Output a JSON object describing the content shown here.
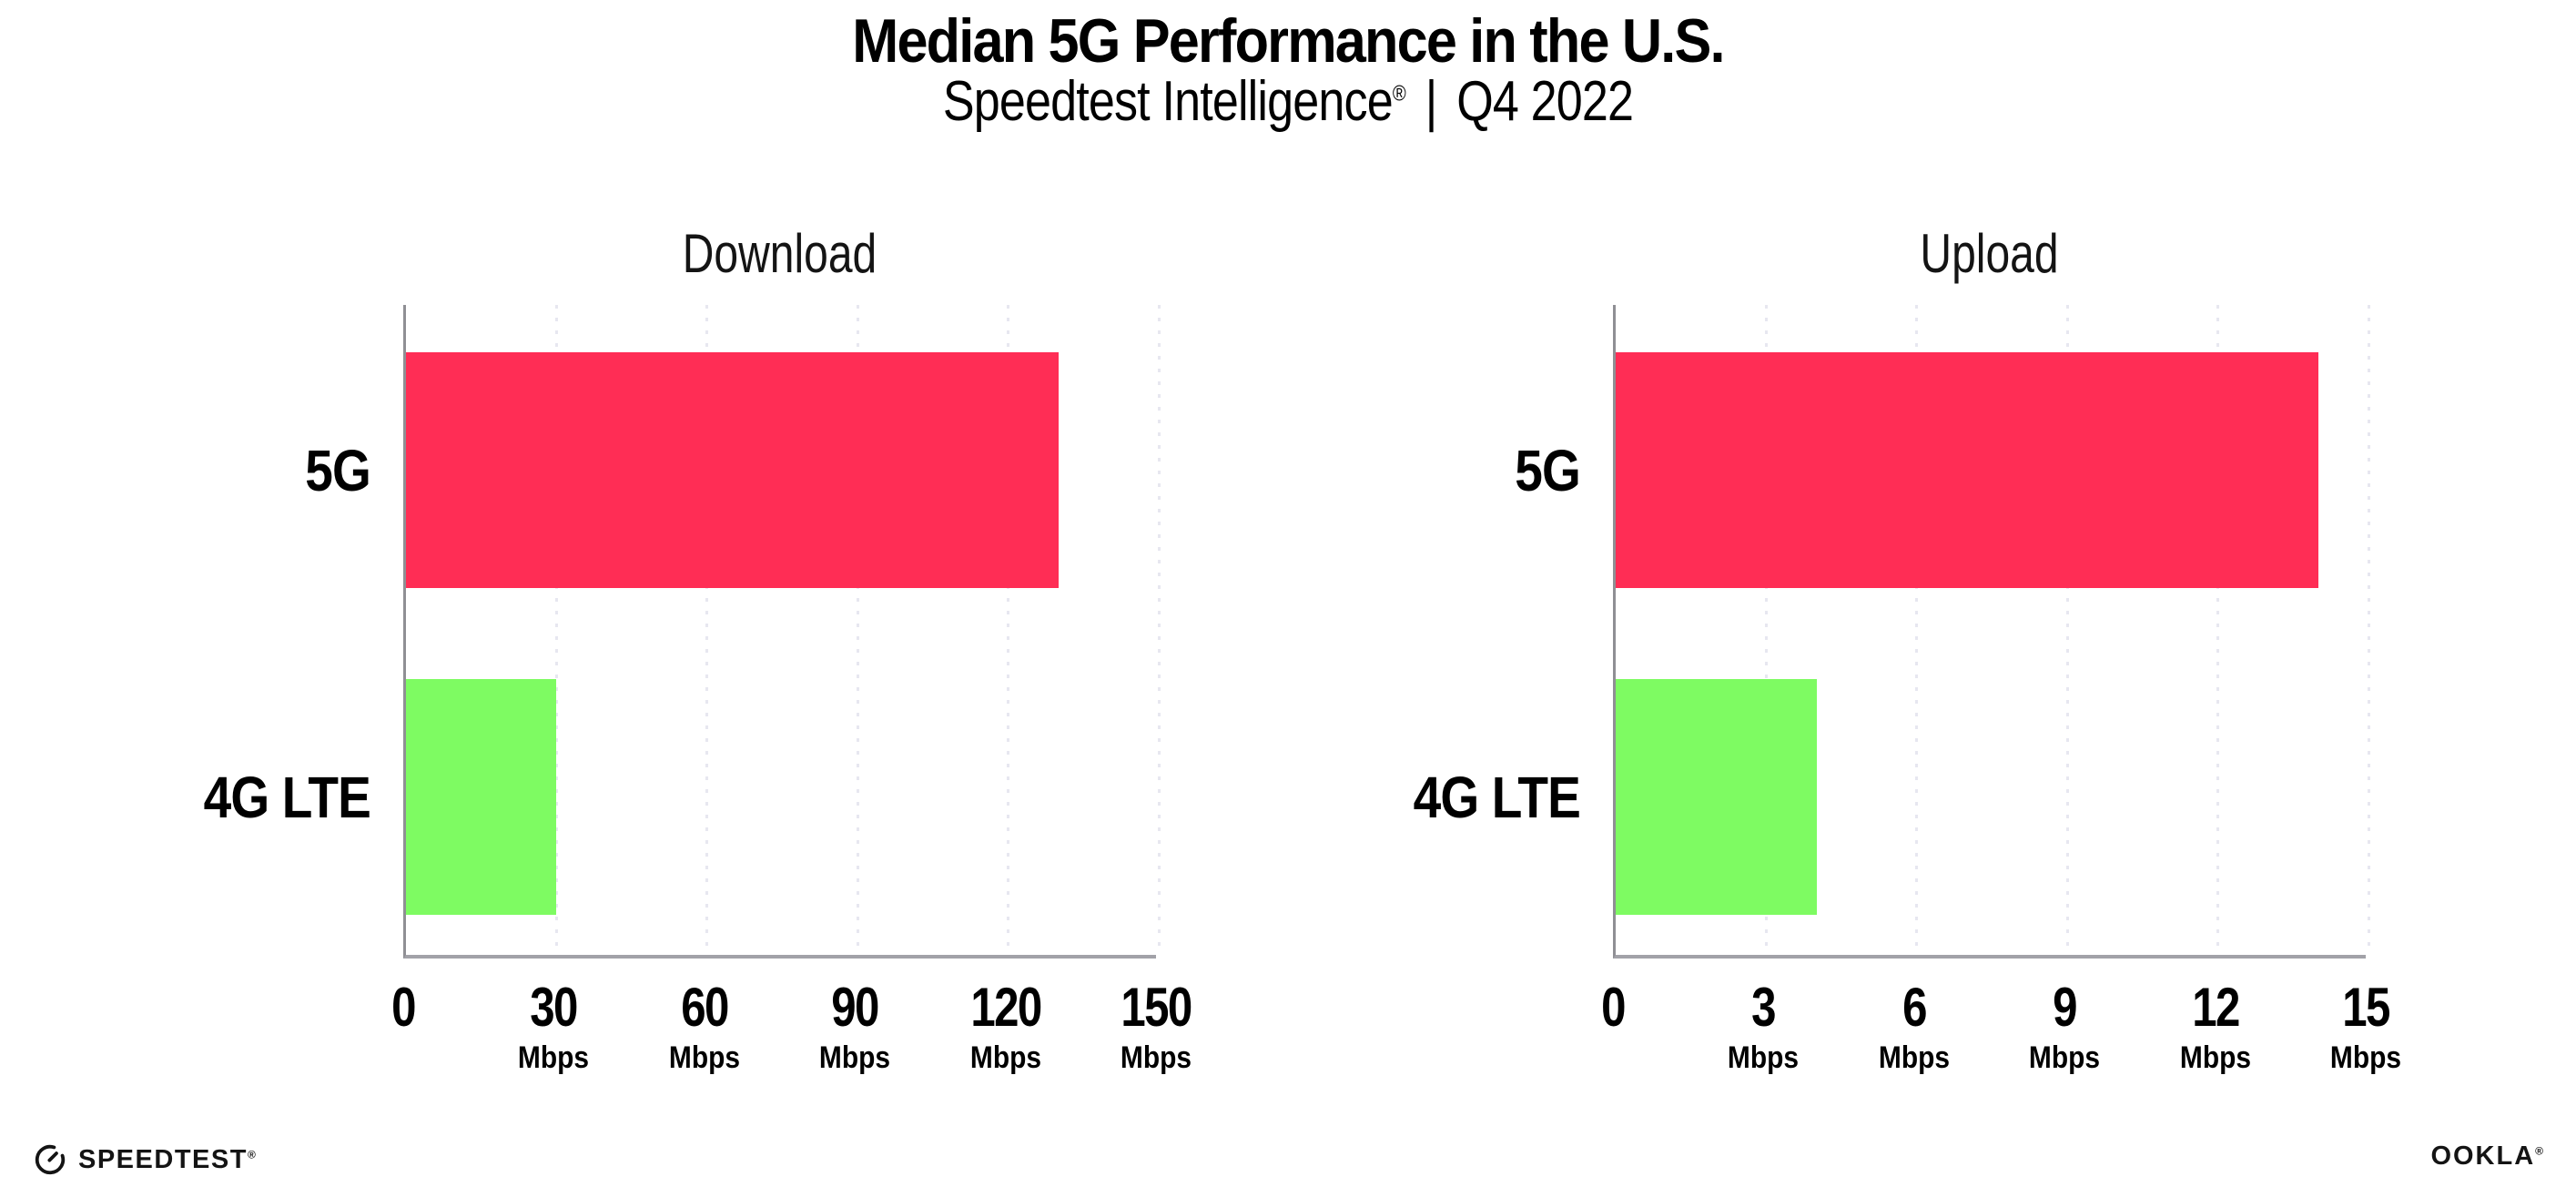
{
  "header": {
    "title": "Median 5G Performance in the U.S.",
    "subtitle_brand": "Speedtest Intelligence",
    "subtitle_reg_mark": "®",
    "subtitle_separator": "|",
    "subtitle_period": "Q4 2022"
  },
  "chart_data": [
    {
      "type": "bar",
      "orientation": "horizontal",
      "title": "Download",
      "categories": [
        "5G",
        "4G LTE"
      ],
      "values": [
        130,
        30
      ],
      "value_unit": "Mbps",
      "xlim": [
        0,
        150
      ],
      "xticks": [
        0,
        30,
        60,
        90,
        120,
        150
      ],
      "tick_unit_label": "Mbps",
      "show_unit_on_zero": false,
      "bar_colors": [
        "#FF2D55",
        "#7EFB62"
      ],
      "grid": "dotted-vertical",
      "legend": "none"
    },
    {
      "type": "bar",
      "orientation": "horizontal",
      "title": "Upload",
      "categories": [
        "5G",
        "4G LTE"
      ],
      "values": [
        14,
        4
      ],
      "value_unit": "Mbps",
      "xlim": [
        0,
        15
      ],
      "xticks": [
        0,
        3,
        6,
        9,
        12,
        15
      ],
      "tick_unit_label": "Mbps",
      "show_unit_on_zero": false,
      "bar_colors": [
        "#FF2D55",
        "#7EFB62"
      ],
      "grid": "dotted-vertical",
      "legend": "none"
    }
  ],
  "footer": {
    "left_logo_text": "SPEEDTEST",
    "left_logo_mark": "®",
    "right_logo_text": "OOKLA",
    "right_logo_mark": "®"
  },
  "colors": {
    "bar_5g": "#FF2D55",
    "bar_4g_lte": "#7EFB62",
    "axis": "#98989c",
    "gridline": "#e7e7f0",
    "text": "#000000",
    "background": "#ffffff"
  }
}
